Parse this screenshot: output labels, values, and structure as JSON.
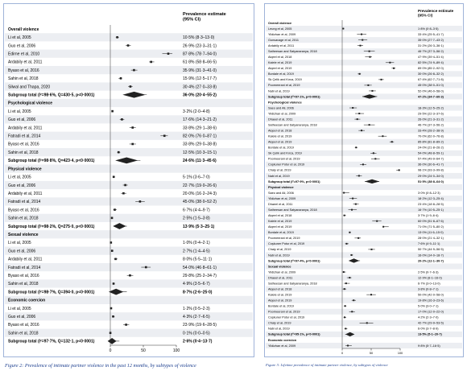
{
  "figure2": {
    "caption": "Figure 2: Prevalence of intimate partner violence in the past 12 months, by subtypes of violence",
    "header_estimate": "Prevalence estimate",
    "header_ci": "(95% CI)",
    "axis_ticks": [
      "0",
      "50",
      "100"
    ],
    "rows": [
      {
        "type": "section",
        "label": "Overall violence"
      },
      {
        "type": "study",
        "label": "Li et al, 2005",
        "est": "10·5% (8·3–13·0)",
        "value": 10.5,
        "lo": 8.3,
        "hi": 13.0
      },
      {
        "type": "study",
        "label": "Guo et al, 2006",
        "est": "26·9% (23·3–31·1)",
        "value": 26.9,
        "lo": 23.3,
        "hi": 31.1
      },
      {
        "type": "study",
        "label": "Edirne et al, 2010",
        "est": "87·8% (78·7–94·0)",
        "value": 87.8,
        "lo": 78.7,
        "hi": 94.0
      },
      {
        "type": "study",
        "label": "Ardabily et al, 2011",
        "est": "61·8% (58·8–66·5)",
        "value": 61.8,
        "lo": 58.8,
        "hi": 66.5
      },
      {
        "type": "study",
        "label": "Byaso et al, 2016",
        "est": "35·9% (31·3–41·0)",
        "value": 35.9,
        "lo": 31.3,
        "hi": 41.0
      },
      {
        "type": "study",
        "label": "Sahin et al, 2018",
        "est": "15·9% (12·5–17·7)",
        "value": 15.9,
        "lo": 12.5,
        "hi": 17.7
      },
      {
        "type": "study",
        "label": "Silwal and Thapa, 2020",
        "est": "30·4% (27·0–33·8)",
        "value": 30.4,
        "lo": 27.0,
        "hi": 33.8
      },
      {
        "type": "subtotal",
        "label": "Subgroup total (I²=98·6%, Q=430·5, p<0·0001)",
        "est": "36·0% (20·4–55·2)",
        "value": 36.0,
        "lo": 20.4,
        "hi": 55.2
      },
      {
        "type": "section",
        "label": "Psychological violence"
      },
      {
        "type": "study",
        "label": "Li et al, 2005",
        "est": "3·2% (2·0–4·8)",
        "value": 3.2,
        "lo": 2.0,
        "hi": 4.8
      },
      {
        "type": "study",
        "label": "Guo et al, 2006",
        "est": "17·6% (14·3–21·2)",
        "value": 17.6,
        "lo": 14.3,
        "hi": 21.2
      },
      {
        "type": "study",
        "label": "Ardabily et al, 2011",
        "est": "33·8% (29·1–38·6)",
        "value": 33.8,
        "lo": 29.1,
        "hi": 38.6
      },
      {
        "type": "study",
        "label": "Fatradi et al, 2014",
        "est": "82·0% (76·0–87·1)",
        "value": 82.0,
        "lo": 76.0,
        "hi": 87.1
      },
      {
        "type": "study",
        "label": "Byaso et al, 2016",
        "est": "33·8% (29·0–38·8)",
        "value": 33.8,
        "lo": 29.0,
        "hi": 38.8
      },
      {
        "type": "study",
        "label": "Sahin et al, 2018",
        "est": "12·5% (10·3–15·1)",
        "value": 12.5,
        "lo": 10.3,
        "hi": 15.1
      },
      {
        "type": "subtotal",
        "label": "Subgroup total (I²=98·8%, Q=423·4, p<0·0001)",
        "est": "24·6% (11·3–45·6)",
        "value": 24.6,
        "lo": 11.3,
        "hi": 45.6
      },
      {
        "type": "section",
        "label": "Physical violence"
      },
      {
        "type": "study",
        "label": "Li et al, 2005",
        "est": "5·1% (3·6–7·0)",
        "value": 5.1,
        "lo": 3.6,
        "hi": 7.0
      },
      {
        "type": "study",
        "label": "Guo et al, 2006",
        "est": "22·7% (19·0–26·6)",
        "value": 22.7,
        "lo": 19.0,
        "hi": 26.6
      },
      {
        "type": "study",
        "label": "Ardabily et al, 2011",
        "est": "20·0% (16·2–24·3)",
        "value": 20.0,
        "lo": 16.2,
        "hi": 24.3
      },
      {
        "type": "study",
        "label": "Fatradi et al, 2014",
        "est": "45·0% (38·0–52·2)",
        "value": 45.0,
        "lo": 38.0,
        "hi": 52.2
      },
      {
        "type": "study",
        "label": "Byaso et al, 2016",
        "est": "6·7% (4·4–9·7)",
        "value": 6.7,
        "lo": 4.4,
        "hi": 9.7
      },
      {
        "type": "study",
        "label": "Sahin et al, 2018",
        "est": "2·5% (1·5–3·8)",
        "value": 2.5,
        "lo": 1.5,
        "hi": 3.8
      },
      {
        "type": "subtotal",
        "label": "Subgroup total (I²=98·2%, Q=275·0, p<0·0001)",
        "est": "13·9% (5·3–25·1)",
        "value": 13.9,
        "lo": 5.3,
        "hi": 25.1
      },
      {
        "type": "section",
        "label": "Sexual violence"
      },
      {
        "type": "study",
        "label": "Li et al, 2005",
        "est": "1·0% (0·4–2·1)",
        "value": 1.0,
        "lo": 0.4,
        "hi": 2.1
      },
      {
        "type": "study",
        "label": "Guo et al, 2006",
        "est": "2·7% (1·4–4·5)",
        "value": 2.7,
        "lo": 1.4,
        "hi": 4.5
      },
      {
        "type": "study",
        "label": "Ardabily et al, 2011",
        "est": "8·0% (5·5–11·1)",
        "value": 8.0,
        "lo": 5.5,
        "hi": 11.1
      },
      {
        "type": "study",
        "label": "Fatradi et al, 2014",
        "est": "54·0% (46·8–61·1)",
        "value": 54.0,
        "lo": 46.8,
        "hi": 61.1
      },
      {
        "type": "study",
        "label": "Byaso et al, 2016",
        "est": "29·8% (25·2–34·7)",
        "value": 29.8,
        "lo": 25.2,
        "hi": 34.7
      },
      {
        "type": "study",
        "label": "Sahin et al, 2018",
        "est": "4·9% (3·5–6·7)",
        "value": 4.9,
        "lo": 3.5,
        "hi": 6.7
      },
      {
        "type": "subtotal",
        "label": "Subgroup total (I²=98·7%, Q=394·0, p<0·0001)",
        "est": "8·7% (2·6–25·0)",
        "value": 8.7,
        "lo": 2.6,
        "hi": 25.0
      },
      {
        "type": "section",
        "label": "Economic coercion"
      },
      {
        "type": "study",
        "label": "Li et al, 2005",
        "est": "1·2% (0·5–2·3)",
        "value": 1.2,
        "lo": 0.5,
        "hi": 2.3
      },
      {
        "type": "study",
        "label": "Guo et al, 2006",
        "est": "4·3% (2·7–6·5)",
        "value": 4.3,
        "lo": 2.7,
        "hi": 6.5
      },
      {
        "type": "study",
        "label": "Byaso et al, 2016",
        "est": "23·9% (19·6–28·5)",
        "value": 23.9,
        "lo": 19.6,
        "hi": 28.5
      },
      {
        "type": "study",
        "label": "Sahin et al, 2018",
        "est": "0·1% (0·0–0·5)",
        "value": 0.1,
        "lo": 0.0,
        "hi": 0.5
      },
      {
        "type": "subtotal",
        "label": "Subgroup total (I²=97·7%, Q=132·1, p<0·0001)",
        "est": "2·6% (0·4–13·7)",
        "value": 2.6,
        "lo": 0.4,
        "hi": 13.7
      }
    ]
  },
  "figure3": {
    "caption": "Figure 3: Lifetime prevalence of intimate partner violence, by subtypes of violence",
    "header_estimate": "Prevalence estimate",
    "header_ci": "(95% CI)",
    "axis_ticks": [
      "0",
      "50",
      "100"
    ],
    "rows": [
      {
        "type": "section",
        "label": "Overall violence"
      },
      {
        "type": "study",
        "label": "Leung et al, 2005",
        "est": "1·8% (0·8–3·5)",
        "value": 1.8,
        "lo": 0.8,
        "hi": 3.5
      },
      {
        "type": "study",
        "label": "Yildizhan et al, 2009",
        "est": "33·4% (25·5–41·7)",
        "value": 33.4,
        "lo": 25.5,
        "hi": 41.7
      },
      {
        "type": "study",
        "label": "Gunsavage et al, 2011",
        "est": "35·0% (27·7–43·2)",
        "value": 35.0,
        "lo": 27.7,
        "hi": 43.2
      },
      {
        "type": "study",
        "label": "Ardabily et al, 2011",
        "est": "31·2% (26·3–36·1)",
        "value": 31.2,
        "lo": 26.3,
        "hi": 36.1
      },
      {
        "type": "study",
        "label": "Satheesan and Satyanaranya, 2018",
        "est": "46·7% (37·3–56·2)",
        "value": 46.7,
        "lo": 37.3,
        "hi": 56.2
      },
      {
        "type": "study",
        "label": "Alqeel et al, 2018",
        "est": "47·9% (39·4–51·4)",
        "value": 47.9,
        "lo": 39.4,
        "hi": 51.4
      },
      {
        "type": "study",
        "label": "Kalele et al, 2019",
        "est": "82·5% (74·9–89·4)",
        "value": 82.5,
        "lo": 74.9,
        "hi": 89.4
      },
      {
        "type": "study",
        "label": "Alqeel et al, 2019",
        "est": "89·0% (85·2–92·0)",
        "value": 89.0,
        "lo": 85.2,
        "hi": 92.0
      },
      {
        "type": "study",
        "label": "Bordale et al, 2019",
        "est": "30·0% (26·8–32·2)",
        "value": 30.0,
        "lo": 26.8,
        "hi": 32.2
      },
      {
        "type": "study",
        "label": "Sk Çelik and Kırca, 2019",
        "est": "67·4% (62·7–71·8)",
        "value": 67.4,
        "lo": 62.7,
        "hi": 71.8
      },
      {
        "type": "study",
        "label": "Poorneerani et al, 2019",
        "est": "45·0% (38·0–51·0)",
        "value": 45.0,
        "lo": 38.0,
        "hi": 51.0
      },
      {
        "type": "study",
        "label": "Nabi et al, 2019",
        "est": "52·0% (46·0–58·0)",
        "value": 52.0,
        "lo": 46.0,
        "hi": 58.0
      },
      {
        "type": "subtotal",
        "label": "Subgroup total (I²=97·1%, p<0·0001)",
        "est": "47·2% (34·7–60·3)",
        "value": 47.2,
        "lo": 34.7,
        "hi": 60.3
      },
      {
        "type": "section",
        "label": "Psychological violence"
      },
      {
        "type": "study",
        "label": "Saeo and Ali, 2006",
        "est": "18·3% (12·5–25·2)",
        "value": 18.3,
        "lo": 12.5,
        "hi": 25.2
      },
      {
        "type": "study",
        "label": "Yildizhan et al, 2009",
        "est": "29·5% (22·3–37·6)",
        "value": 29.5,
        "lo": 22.3,
        "hi": 37.6
      },
      {
        "type": "study",
        "label": "Dhaeel et al, 2011",
        "est": "26·0% (21·3–31·2)",
        "value": 26.0,
        "lo": 21.3,
        "hi": 31.2
      },
      {
        "type": "study",
        "label": "Satheesan and Satyanaranya, 2018",
        "est": "46·7% (37·3–56·2)",
        "value": 46.7,
        "lo": 37.3,
        "hi": 56.2
      },
      {
        "type": "study",
        "label": "Alqeel et al, 2018",
        "est": "33·4% (28·2–38·9)",
        "value": 33.4,
        "lo": 28.2,
        "hi": 38.9
      },
      {
        "type": "study",
        "label": "Kalele et al, 2019",
        "est": "70·0% (62·0–76·8)",
        "value": 70.0,
        "lo": 62.0,
        "hi": 76.8
      },
      {
        "type": "study",
        "label": "Alqeel et al, 2019",
        "est": "85·8% (81·8–89·2)",
        "value": 85.8,
        "lo": 81.8,
        "hi": 89.2
      },
      {
        "type": "study",
        "label": "Bordale et al, 2019",
        "est": "24·0% (21·8–26·2)",
        "value": 24.0,
        "lo": 21.8,
        "hi": 26.2
      },
      {
        "type": "study",
        "label": "Sk Çelik and Kırca, 2019",
        "est": "54·0% (48·8–59·1)",
        "value": 54.0,
        "lo": 48.8,
        "hi": 59.1
      },
      {
        "type": "study",
        "label": "Poorneerani et al, 2019",
        "est": "57·4% (49·9–64·7)",
        "value": 57.4,
        "lo": 49.9,
        "hi": 64.7
      },
      {
        "type": "study",
        "label": "Coşkuner Potur et al, 2019",
        "est": "36·0% (30·6–41·7)",
        "value": 36.0,
        "lo": 30.6,
        "hi": 41.7
      },
      {
        "type": "study",
        "label": "Chaly et al, 2019",
        "est": "98·1% (93·3–99·8)",
        "value": 98.1,
        "lo": 93.3,
        "hi": 99.8
      },
      {
        "type": "study",
        "label": "Nabi et al, 2019",
        "est": "29·0% (24·0–34·0)",
        "value": 29.0,
        "lo": 24.0,
        "hi": 34.0
      },
      {
        "type": "subtotal",
        "label": "Subgroup total (I²=97·9%, p<0·0001)",
        "est": "51·5% (38·8–64·0)",
        "value": 51.5,
        "lo": 38.8,
        "hi": 64.0
      },
      {
        "type": "section",
        "label": "Physical violence"
      },
      {
        "type": "study",
        "label": "Saeo and Ali, 2006",
        "est": "3·0% (0·8–12·3)",
        "value": 3.0,
        "lo": 0.8,
        "hi": 12.3
      },
      {
        "type": "study",
        "label": "Yildizhan et al, 2009",
        "est": "18·2% (12·3–25·4)",
        "value": 18.2,
        "lo": 12.3,
        "hi": 25.4
      },
      {
        "type": "study",
        "label": "Dhaeel et al, 2011",
        "est": "23·4% (18·8–28·5)",
        "value": 23.4,
        "lo": 18.8,
        "hi": 28.5
      },
      {
        "type": "study",
        "label": "Satheesan and Satyanaranya, 2018",
        "est": "16·7% (10·5–25·1)",
        "value": 16.7,
        "lo": 10.5,
        "hi": 25.1
      },
      {
        "type": "study",
        "label": "Alqeel et al, 2018",
        "est": "3·7% (1·9–6·4)",
        "value": 3.7,
        "lo": 1.9,
        "hi": 6.4
      },
      {
        "type": "study",
        "label": "Kalele et al, 2019",
        "est": "60·0% (51·8–67·6)",
        "value": 60.0,
        "lo": 51.8,
        "hi": 67.6
      },
      {
        "type": "study",
        "label": "Alqeel et al, 2019",
        "est": "71·0% (71·5–80·2)",
        "value": 71.0,
        "lo": 71.5,
        "hi": 80.2
      },
      {
        "type": "study",
        "label": "Bordale et al, 2019",
        "est": "13·0% (11·6–15·0)",
        "value": 13.0,
        "lo": 11.6,
        "hi": 15.0
      },
      {
        "type": "study",
        "label": "Poorneerani et al, 2019",
        "est": "28·0% (21·4–32·1)",
        "value": 28.0,
        "lo": 21.4,
        "hi": 32.1
      },
      {
        "type": "study",
        "label": "Coşkuner Potur et al, 2019",
        "est": "7·6% (4·9–11·1)",
        "value": 7.6,
        "lo": 4.9,
        "hi": 11.1
      },
      {
        "type": "study",
        "label": "Chaly et al, 2019",
        "est": "50·7% (44·9–56·5)",
        "value": 50.7,
        "lo": 44.9,
        "hi": 56.5
      },
      {
        "type": "study",
        "label": "Nabi et al, 2019",
        "est": "16·0% (14·0–18·7)",
        "value": 16.0,
        "lo": 14.0,
        "hi": 18.7
      },
      {
        "type": "subtotal",
        "label": "Subgroup total (I²=97·4%, p<0·0001)",
        "est": "20·2% (12·1–30·7)",
        "value": 20.2,
        "lo": 12.1,
        "hi": 30.7
      },
      {
        "type": "section",
        "label": "Sexual violence"
      },
      {
        "type": "study",
        "label": "Yildizhan et al, 2009",
        "est": "2·5% (0·7–6·3)",
        "value": 2.5,
        "lo": 0.7,
        "hi": 6.3
      },
      {
        "type": "study",
        "label": "Dhaeel et al, 2011",
        "est": "12·9% (8·1–16·0)",
        "value": 12.9,
        "lo": 8.1,
        "hi": 16.0
      },
      {
        "type": "study",
        "label": "Satheesan and Satyanaranya, 2018",
        "est": "6·7% (3·0–13·0)",
        "value": 6.7,
        "lo": 3.0,
        "hi": 13.0
      },
      {
        "type": "study",
        "label": "Alqeel et al, 2018",
        "est": "3·8% (0·8–7·1)",
        "value": 3.8,
        "lo": 0.8,
        "hi": 7.1
      },
      {
        "type": "study",
        "label": "Kalele et al, 2019",
        "est": "50·0% (42·0–58·0)",
        "value": 50.0,
        "lo": 42.0,
        "hi": 58.0
      },
      {
        "type": "study",
        "label": "Alqeel et al, 2019",
        "est": "19·8% (16·3–23·6)",
        "value": 19.8,
        "lo": 16.3,
        "hi": 23.6
      },
      {
        "type": "study",
        "label": "Bordale et al, 2019",
        "est": "5·0% (3·0–7·1)",
        "value": 5.0,
        "lo": 3.0,
        "hi": 7.1
      },
      {
        "type": "study",
        "label": "Poorneerani et al, 2019",
        "est": "17·0% (12·0–22·0)",
        "value": 17.0,
        "lo": 12.0,
        "hi": 22.0
      },
      {
        "type": "study",
        "label": "Coşkuner Potur et al, 2019",
        "est": "4·2% (2·3–7·0)",
        "value": 4.2,
        "lo": 2.3,
        "hi": 7.0
      },
      {
        "type": "study",
        "label": "Chaly et al, 2019",
        "est": "42·7% (29·9–53·5)",
        "value": 42.7,
        "lo": 29.9,
        "hi": 53.5
      },
      {
        "type": "study",
        "label": "Nabi et al, 2019",
        "est": "6·0% (3·7–8·9)",
        "value": 6.0,
        "lo": 3.7,
        "hi": 8.9
      },
      {
        "type": "subtotal",
        "label": "Subgroup total (I²=95·1%, p<0·0001)",
        "est": "13·5% (5·1–20·7)",
        "value": 13.5,
        "lo": 5.1,
        "hi": 20.7
      },
      {
        "type": "section",
        "label": "Economic coercion"
      },
      {
        "type": "study",
        "label": "Yildizhan et al, 2009",
        "est": "9·8% (5·7–16·5)",
        "value": 9.8,
        "lo": 5.7,
        "hi": 16.5
      }
    ]
  },
  "chart_data": [
    {
      "type": "scatter",
      "subtype": "forest_plot",
      "title": "Figure 2: Prevalence of intimate partner violence in the past 12 months, by subtypes of violence",
      "xlim": [
        0,
        100
      ],
      "x_ticks": [
        0,
        50,
        100
      ],
      "source": "figure2.rows"
    },
    {
      "type": "scatter",
      "subtype": "forest_plot",
      "title": "Figure 3: Lifetime prevalence of intimate partner violence, by subtypes of violence",
      "xlim": [
        0,
        100
      ],
      "x_ticks": [
        0,
        50,
        100
      ],
      "source": "figure3.rows"
    }
  ],
  "colors": {
    "caption": "#1d3f8f",
    "marker": "#222222",
    "line": "#333333",
    "border": "#9fb3d9",
    "stripe": "#eceef2"
  }
}
